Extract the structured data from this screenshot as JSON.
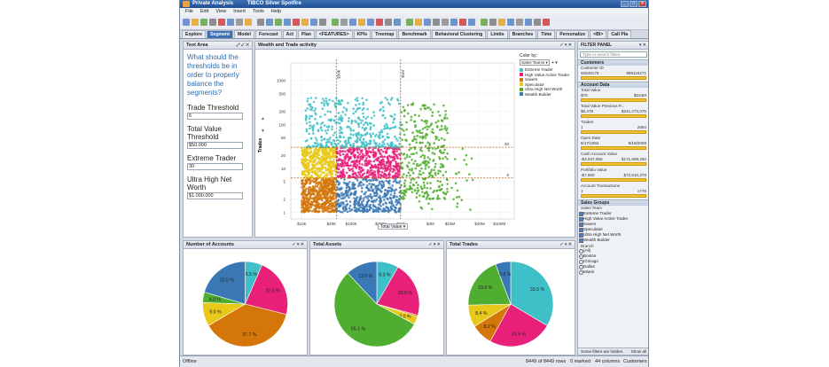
{
  "app": {
    "title": "Private Analysis",
    "title_suffix": "TIBCO Silver Spotfire"
  },
  "menu": [
    "File",
    "Edit",
    "View",
    "Insert",
    "Tools",
    "Help"
  ],
  "tabs": [
    {
      "label": "Explore",
      "active": false
    },
    {
      "label": "Segment",
      "active": true
    },
    {
      "label": "Model",
      "active": false
    },
    {
      "label": "Forecast",
      "active": false
    },
    {
      "label": "Act",
      "active": false
    },
    {
      "label": "Plan",
      "active": false
    },
    {
      "label": "<FEATURES>",
      "active": false
    },
    {
      "label": "KPIs",
      "active": false
    },
    {
      "label": "Treemap",
      "active": false
    },
    {
      "label": "Benchmark",
      "active": false
    },
    {
      "label": "Behavioral Clustering",
      "active": false
    },
    {
      "label": "Limits",
      "active": false
    },
    {
      "label": "Branches",
      "active": false
    },
    {
      "label": "Time",
      "active": false
    },
    {
      "label": "Personalize",
      "active": false
    },
    {
      "label": "<BI>",
      "active": false
    },
    {
      "label": "Call Pla",
      "active": false
    }
  ],
  "text_area": {
    "header": "Text Area",
    "question": "What should the thresholds be in order to properly balance the segments?",
    "fields": [
      {
        "label": "Trade Threshold",
        "value": "6"
      },
      {
        "label": "Total Value Threshold",
        "value": "$50.000"
      },
      {
        "label": "Extreme Trader",
        "value": "30"
      },
      {
        "label": "Ultra High Net Worth",
        "value": "$1.000.000"
      }
    ]
  },
  "scatter": {
    "header": "Wealth and Trade activity",
    "color_by_label": "Color by:",
    "color_by_value": "Sales Teams",
    "y_axis_title": "Trades",
    "x_axis_title": "Total Value",
    "y_ticks": [
      "1000",
      "500",
      "200",
      "100",
      "50",
      "20",
      "10",
      "5",
      "2",
      "1"
    ],
    "x_ticks": [
      "$10K",
      "$40K",
      "$100K",
      "$400K",
      "$1M",
      "$4M",
      "$10M",
      "$40M",
      "$100M"
    ],
    "ref_lines": {
      "x1": "$50k",
      "x2": "$1M",
      "y1": "30",
      "y2": "6"
    }
  },
  "legend": [
    {
      "name": "Extreme Trader",
      "color": "#3fbfc8"
    },
    {
      "name": "High Value Active Trader",
      "color": "#e8207a"
    },
    {
      "name": "Savers",
      "color": "#d4760a"
    },
    {
      "name": "Speculator",
      "color": "#e8c818"
    },
    {
      "name": "Ultra High Net Worth",
      "color": "#4fae2f"
    },
    {
      "name": "Wealth Builder",
      "color": "#3a78b5"
    }
  ],
  "chart_data": [
    {
      "type": "pie",
      "title": "Number of Accounts",
      "labels": [
        "Extreme Trader",
        "High Value Active Trader",
        "Savers",
        "Speculator",
        "Ultra High Net Worth",
        "Wealth Builder"
      ],
      "values": [
        6.5,
        22.5,
        37.7,
        9.0,
        4.0,
        20.5
      ]
    },
    {
      "type": "pie",
      "title": "Total Assets",
      "labels": [
        "Extreme Trader",
        "High Value Active Trader",
        "Savers",
        "Speculator",
        "Ultra High Net Worth",
        "Wealth Builder"
      ],
      "values": [
        8.3,
        20.9,
        0.6,
        3.0,
        55.1,
        12.0
      ]
    },
    {
      "type": "pie",
      "title": "Total Trades",
      "labels": [
        "Extreme Trader",
        "High Value Active Trader",
        "Savers",
        "Speculator",
        "Ultra High Net Worth",
        "Wealth Builder"
      ],
      "values": [
        33.5,
        24.5,
        8.2,
        8.4,
        19.6,
        5.8
      ]
    }
  ],
  "filter_panel": {
    "header": "FILTER PANEL",
    "search_placeholder": "Type to search filters",
    "customers_header": "Customers",
    "customer_id": {
      "label": "Customer ID",
      "min": "92548175",
      "max": "998116271"
    },
    "account_data_header": "Account Data",
    "total_value": {
      "label": "Total Value",
      "min": "$76",
      "max": "$244M"
    },
    "total_value_prev": {
      "label": "Total Value Previous P...",
      "min": "$5,479",
      "max": "$241,273,076"
    },
    "trades": {
      "label": "Trades",
      "min": "1",
      "max": "2664"
    },
    "open_date": {
      "label": "Open Date",
      "min": "8/17/1994",
      "max": "9/19/2008"
    },
    "cash_account": {
      "label": "Cash Account Value",
      "min": "-$4,047,055",
      "max": "$171,669,282"
    },
    "portfolio": {
      "label": "Portfolio Value",
      "min": "-$7,960",
      "max": "$72,510,378"
    },
    "account_tx": {
      "label": "Account Transactions",
      "min": "1",
      "max": "1776"
    },
    "sales_groups_header": "Sales Groups",
    "sales_team_label": "Sales Team",
    "sales_teams": [
      "Extreme Trader",
      "High Value Active Trader",
      "Savers",
      "Speculator",
      "Ultra High Net Worth",
      "Wealth Builder"
    ],
    "branch_label": "Branch",
    "branches": [
      "(All)",
      "Boston",
      "Chicago",
      "Dallas",
      "Miami"
    ],
    "footer": "Some filters are hidden.",
    "show_all": "Show all"
  },
  "status": {
    "left": "Offline",
    "rows": "8449 of 8449 rows",
    "marked": "0 marked",
    "columns": "44 columns",
    "table": "Customers"
  }
}
